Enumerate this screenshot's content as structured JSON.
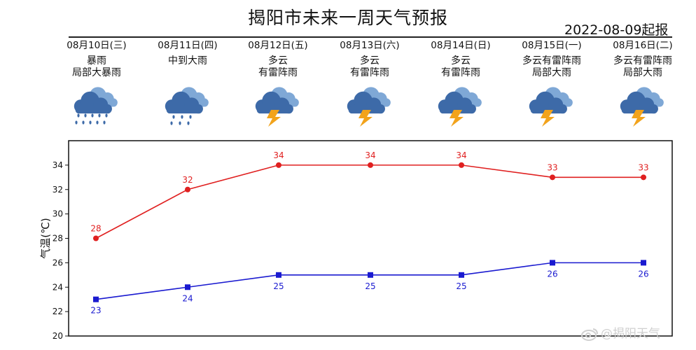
{
  "title": "揭阳市未来一周天气预报",
  "issue_date": "2022-08-09起报",
  "days": [
    {
      "label": "08月10日(三)",
      "desc": [
        "暴雨",
        "局部大暴雨"
      ],
      "icon": "heavy-rain-icon"
    },
    {
      "label": "08月11日(四)",
      "desc": [
        "中到大雨"
      ],
      "icon": "rain-icon"
    },
    {
      "label": "08月12日(五)",
      "desc": [
        "多云",
        "有雷阵雨"
      ],
      "icon": "thunderstorm-icon"
    },
    {
      "label": "08月13日(六)",
      "desc": [
        "多云",
        "有雷阵雨"
      ],
      "icon": "thunderstorm-icon"
    },
    {
      "label": "08月14日(日)",
      "desc": [
        "多云",
        "有雷阵雨"
      ],
      "icon": "thunderstorm-icon"
    },
    {
      "label": "08月15日(一)",
      "desc": [
        "多云有雷阵雨",
        "局部大雨"
      ],
      "icon": "thunderstorm-icon"
    },
    {
      "label": "08月16日(二)",
      "desc": [
        "多云有雷阵雨",
        "局部大雨"
      ],
      "icon": "thunderstorm-icon"
    }
  ],
  "watermark": "@揭阳天气",
  "colors": {
    "high": "#e02020",
    "low": "#1a1ad0",
    "cloud_light": "#7fa8d6",
    "cloud_dark": "#3d6aa8",
    "bolt": "#f2a31b"
  },
  "chart_data": {
    "type": "line",
    "x": [
      "08月10日(三)",
      "08月11日(四)",
      "08月12日(五)",
      "08月13日(六)",
      "08月14日(日)",
      "08月15日(一)",
      "08月16日(二)"
    ],
    "series": [
      {
        "values": [
          28,
          32,
          34,
          34,
          34,
          33,
          33
        ],
        "color": "#e02020",
        "marker": "circle",
        "labels": "above"
      },
      {
        "values": [
          23,
          24,
          25,
          25,
          25,
          26,
          26
        ],
        "color": "#1a1ad0",
        "marker": "square",
        "labels": "below"
      }
    ],
    "ylabel": "气温(℃)",
    "ylim": [
      20,
      36
    ],
    "yticks": [
      20,
      22,
      24,
      26,
      28,
      30,
      32,
      34
    ],
    "grid": false
  }
}
